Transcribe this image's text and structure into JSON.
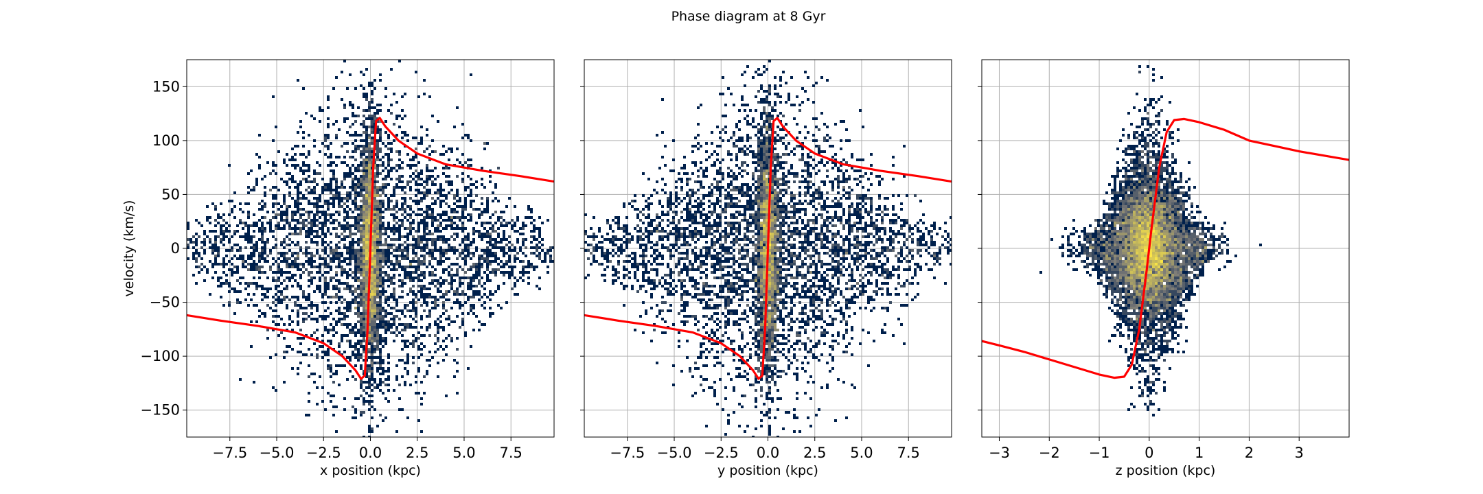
{
  "figure": {
    "title": "Phase diagram at 8 Gyr"
  },
  "colors": {
    "curve": "#ff0000",
    "density_low": "#00204c",
    "density_mid": "#7c7b78",
    "density_high": "#ffe945",
    "grid": "#b0b0b0"
  },
  "chart_data": [
    {
      "type": "heatmap",
      "xlabel": "x position (kpc)",
      "ylabel": "velocity (km/s)",
      "xlim": [
        -9.8,
        9.8
      ],
      "ylim": [
        -175,
        175
      ],
      "xticks": [
        -7.5,
        -5.0,
        -2.5,
        0.0,
        2.5,
        5.0,
        7.5
      ],
      "xtick_labels": [
        "−7.5",
        "−5.0",
        "−2.5",
        "0.0",
        "2.5",
        "5.0",
        "7.5"
      ],
      "yticks": [
        -150,
        -100,
        -50,
        0,
        50,
        100,
        150
      ],
      "ytick_labels": [
        "−150",
        "−100",
        "−50",
        "0",
        "50",
        "100",
        "150"
      ],
      "grid": true,
      "colormap": "cividis",
      "distribution": {
        "x_scale": 4.5,
        "v_scale": 60,
        "core_x_scale": 0.3,
        "core_v_scale": 55
      },
      "curve": {
        "x": [
          -9.8,
          -8,
          -6,
          -4,
          -2.5,
          -1.5,
          -0.8,
          -0.5,
          -0.3,
          -0.15,
          0,
          0.15,
          0.3,
          0.5,
          0.8,
          1.5,
          2.5,
          4,
          6,
          8,
          9.8
        ],
        "y": [
          -62,
          -67,
          -72,
          -78,
          -88,
          -100,
          -113,
          -121,
          -118,
          -75,
          0,
          75,
          118,
          121,
          113,
          100,
          88,
          78,
          72,
          67,
          62
        ]
      }
    },
    {
      "type": "heatmap",
      "xlabel": "y position (kpc)",
      "ylabel": "",
      "xlim": [
        -9.8,
        9.8
      ],
      "ylim": [
        -175,
        175
      ],
      "xticks": [
        -7.5,
        -5.0,
        -2.5,
        0.0,
        2.5,
        5.0,
        7.5
      ],
      "xtick_labels": [
        "−7.5",
        "−5.0",
        "−2.5",
        "0.0",
        "2.5",
        "5.0",
        "7.5"
      ],
      "yticks": [
        -150,
        -100,
        -50,
        0,
        50,
        100,
        150
      ],
      "ytick_labels": [],
      "grid": true,
      "colormap": "cividis",
      "distribution": {
        "x_scale": 4.5,
        "v_scale": 60,
        "core_x_scale": 0.3,
        "core_v_scale": 55
      },
      "curve": {
        "x": [
          -9.8,
          -8,
          -6,
          -4,
          -2.5,
          -1.5,
          -0.8,
          -0.5,
          -0.3,
          -0.15,
          0,
          0.15,
          0.3,
          0.5,
          0.8,
          1.5,
          2.5,
          4,
          6,
          8,
          9.8
        ],
        "y": [
          -62,
          -67,
          -72,
          -78,
          -88,
          -100,
          -113,
          -121,
          -118,
          -75,
          0,
          75,
          118,
          121,
          113,
          100,
          88,
          78,
          72,
          67,
          62
        ]
      }
    },
    {
      "type": "heatmap",
      "xlabel": "z position (kpc)",
      "ylabel": "",
      "xlim": [
        -3.35,
        4.0
      ],
      "ylim": [
        -175,
        175
      ],
      "xticks": [
        -3,
        -2,
        -1,
        0,
        1,
        2,
        3
      ],
      "xtick_labels": [
        "−3",
        "−2",
        "−1",
        "0",
        "1",
        "2",
        "3"
      ],
      "yticks": [
        -150,
        -100,
        -50,
        0,
        50,
        100,
        150
      ],
      "ytick_labels": [],
      "grid": true,
      "colormap": "cividis",
      "distribution": {
        "x_scale": 0.55,
        "v_scale": 45,
        "core_x_scale": 0.22,
        "core_v_scale": 25
      },
      "curve": {
        "x": [
          -3.35,
          -3,
          -2.5,
          -2,
          -1.5,
          -1.0,
          -0.7,
          -0.5,
          -0.35,
          -0.2,
          -0.05,
          0,
          0.05,
          0.2,
          0.35,
          0.5,
          0.7,
          1.0,
          1.5,
          2,
          2.5,
          3,
          4.0
        ],
        "y": [
          -86,
          -90,
          -96,
          -103,
          -110,
          -117,
          -120,
          -119,
          -108,
          -75,
          -20,
          0,
          20,
          75,
          108,
          119,
          120,
          117,
          110,
          100,
          95,
          90,
          82
        ]
      }
    }
  ]
}
